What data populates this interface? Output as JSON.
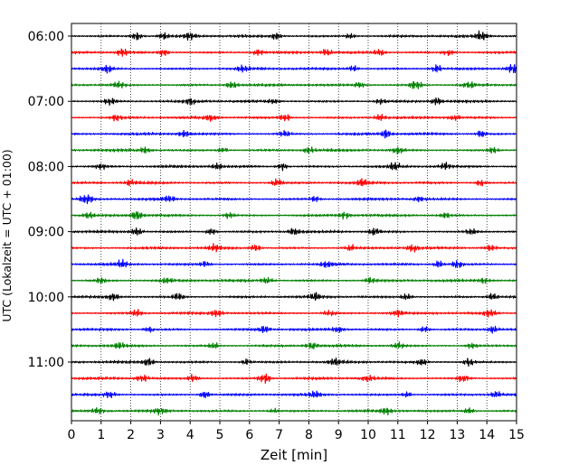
{
  "chart_data": {
    "type": "line",
    "subtype": "seismic-helicorder",
    "title": "",
    "xlabel": "Zeit  [min]",
    "ylabel": "UTC (Lokalzeit = UTC + 01:00)",
    "xlim": [
      0,
      15
    ],
    "x_ticks": [
      0,
      1,
      2,
      3,
      4,
      5,
      6,
      7,
      8,
      9,
      10,
      11,
      12,
      13,
      14,
      15
    ],
    "x_tick_labels": [
      "0",
      "1",
      "2",
      "3",
      "4",
      "5",
      "6",
      "7",
      "8",
      "9",
      "10",
      "11",
      "12",
      "13",
      "14",
      "15"
    ],
    "y_tick_labels": [
      "06:00",
      "07:00",
      "08:00",
      "09:00",
      "10:00",
      "11:00"
    ],
    "y_tick_row_index": [
      0,
      4,
      8,
      12,
      16,
      20
    ],
    "grid": "vertical dotted lines at each minute",
    "row_duration_min": 15,
    "row_start_times": [
      "06:00",
      "06:15",
      "06:30",
      "06:45",
      "07:00",
      "07:15",
      "07:30",
      "07:45",
      "08:00",
      "08:15",
      "08:30",
      "08:45",
      "09:00",
      "09:15",
      "09:30",
      "09:45",
      "10:00",
      "10:15",
      "10:30",
      "10:45",
      "11:00",
      "11:15",
      "11:30",
      "11:45"
    ],
    "color_cycle": [
      "#000000",
      "#ff0000",
      "#0000ff",
      "#008000"
    ],
    "series_colors_by_row": [
      "#000000",
      "#ff0000",
      "#0000ff",
      "#008000",
      "#000000",
      "#ff0000",
      "#0000ff",
      "#008000",
      "#000000",
      "#ff0000",
      "#0000ff",
      "#008000",
      "#000000",
      "#ff0000",
      "#0000ff",
      "#008000",
      "#000000",
      "#ff0000",
      "#0000ff",
      "#008000",
      "#000000",
      "#ff0000",
      "#0000ff",
      "#008000"
    ],
    "bursts": [
      [
        [
          2.2,
          1.0
        ],
        [
          3.1,
          0.7
        ],
        [
          4.0,
          0.8
        ],
        [
          6.9,
          0.8
        ],
        [
          9.4,
          0.7
        ],
        [
          13.8,
          1.4
        ]
      ],
      [
        [
          1.7,
          0.9
        ],
        [
          3.1,
          0.9
        ],
        [
          6.3,
          0.8
        ],
        [
          8.6,
          0.7
        ],
        [
          10.4,
          0.8
        ],
        [
          12.7,
          0.7
        ]
      ],
      [
        [
          1.2,
          1.0
        ],
        [
          5.8,
          0.8
        ],
        [
          9.5,
          0.7
        ],
        [
          12.3,
          0.9
        ],
        [
          14.9,
          1.2
        ]
      ],
      [
        [
          1.6,
          0.8
        ],
        [
          5.4,
          0.7
        ],
        [
          9.7,
          0.7
        ],
        [
          11.6,
          1.3
        ],
        [
          13.4,
          0.8
        ]
      ],
      [
        [
          1.3,
          0.8
        ],
        [
          4.0,
          0.7
        ],
        [
          6.8,
          0.6
        ],
        [
          10.4,
          0.7
        ],
        [
          12.3,
          0.8
        ]
      ],
      [
        [
          1.5,
          0.8
        ],
        [
          4.7,
          0.7
        ],
        [
          7.2,
          0.9
        ],
        [
          10.4,
          0.7
        ],
        [
          12.9,
          0.6
        ]
      ],
      [
        [
          3.8,
          0.8
        ],
        [
          7.2,
          0.7
        ],
        [
          10.6,
          1.1
        ],
        [
          13.8,
          0.8
        ]
      ],
      [
        [
          2.5,
          0.7
        ],
        [
          5.1,
          0.7
        ],
        [
          8.0,
          0.7
        ],
        [
          11.0,
          0.7
        ],
        [
          14.2,
          0.6
        ]
      ],
      [
        [
          1.0,
          0.7
        ],
        [
          4.9,
          0.7
        ],
        [
          7.1,
          0.9
        ],
        [
          10.9,
          0.8
        ],
        [
          12.6,
          0.8
        ]
      ],
      [
        [
          2.0,
          0.7
        ],
        [
          6.9,
          1.0
        ],
        [
          9.8,
          0.7
        ],
        [
          13.8,
          0.7
        ]
      ],
      [
        [
          0.5,
          1.5
        ],
        [
          3.3,
          0.6
        ],
        [
          8.2,
          0.6
        ],
        [
          11.7,
          0.6
        ]
      ],
      [
        [
          0.6,
          0.6
        ],
        [
          2.2,
          1.2
        ],
        [
          5.3,
          0.7
        ],
        [
          9.2,
          0.7
        ],
        [
          12.6,
          0.6
        ]
      ],
      [
        [
          2.2,
          1.0
        ],
        [
          4.7,
          0.8
        ],
        [
          7.5,
          0.7
        ],
        [
          10.2,
          0.8
        ],
        [
          13.5,
          0.7
        ]
      ],
      [
        [
          4.8,
          0.9
        ],
        [
          6.2,
          0.8
        ],
        [
          9.4,
          0.7
        ],
        [
          11.5,
          0.8
        ],
        [
          14.1,
          0.7
        ]
      ],
      [
        [
          1.7,
          0.8
        ],
        [
          4.5,
          0.8
        ],
        [
          8.6,
          0.7
        ],
        [
          12.4,
          0.9
        ],
        [
          13.0,
          0.9
        ]
      ],
      [
        [
          1.0,
          0.6
        ],
        [
          3.2,
          0.6
        ],
        [
          6.6,
          0.7
        ],
        [
          10.1,
          0.7
        ],
        [
          13.9,
          0.6
        ]
      ],
      [
        [
          1.4,
          0.8
        ],
        [
          3.6,
          0.9
        ],
        [
          8.2,
          0.8
        ],
        [
          11.3,
          0.7
        ],
        [
          14.2,
          0.8
        ]
      ],
      [
        [
          2.2,
          0.7
        ],
        [
          4.9,
          0.7
        ],
        [
          8.7,
          0.7
        ],
        [
          11.0,
          0.7
        ],
        [
          14.1,
          0.8
        ]
      ],
      [
        [
          2.6,
          0.7
        ],
        [
          6.5,
          0.7
        ],
        [
          9.0,
          0.7
        ],
        [
          11.9,
          0.8
        ],
        [
          14.2,
          0.8
        ]
      ],
      [
        [
          1.6,
          0.7
        ],
        [
          4.8,
          0.7
        ],
        [
          8.1,
          0.8
        ],
        [
          11.0,
          0.8
        ],
        [
          13.5,
          0.7
        ]
      ],
      [
        [
          2.6,
          0.8
        ],
        [
          5.9,
          0.7
        ],
        [
          8.9,
          0.7
        ],
        [
          11.8,
          0.8
        ],
        [
          13.4,
          0.9
        ]
      ],
      [
        [
          2.4,
          0.9
        ],
        [
          4.1,
          0.9
        ],
        [
          6.5,
          1.3
        ],
        [
          10.0,
          0.7
        ],
        [
          13.2,
          0.9
        ]
      ],
      [
        [
          1.3,
          0.7
        ],
        [
          4.5,
          1.0
        ],
        [
          8.2,
          0.7
        ],
        [
          11.3,
          0.7
        ],
        [
          14.3,
          0.7
        ]
      ],
      [
        [
          0.9,
          0.7
        ],
        [
          3.0,
          0.7
        ],
        [
          6.8,
          0.6
        ],
        [
          10.6,
          0.7
        ],
        [
          13.4,
          0.7
        ]
      ]
    ]
  }
}
